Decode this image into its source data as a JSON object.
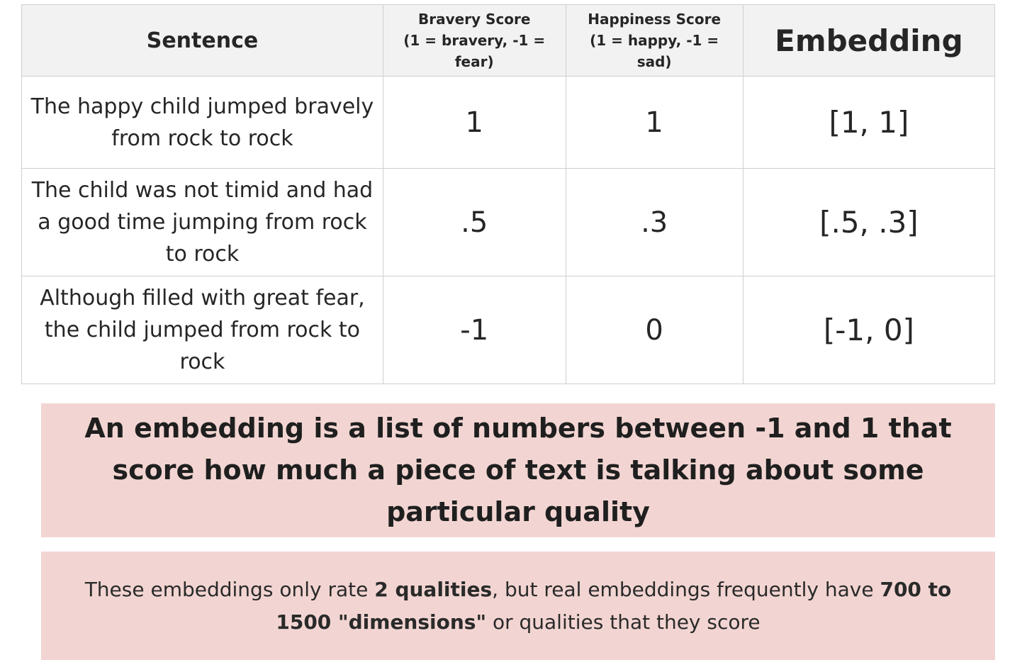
{
  "table": {
    "headers": {
      "sentence": "Sentence",
      "bravery_title": "Bravery Score",
      "bravery_sub": "(1 = bravery, -1 = fear)",
      "happiness_title": "Happiness Score",
      "happiness_sub": "(1 = happy, -1 = sad)",
      "embedding": "Embedding"
    },
    "rows": [
      {
        "sentence": "The happy child jumped bravely from rock to rock",
        "bravery": "1",
        "happiness": "1",
        "embedding": "[1, 1]"
      },
      {
        "sentence": "The child was not timid and had a good time jumping from rock to rock",
        "bravery": ".5",
        "happiness": ".3",
        "embedding": "[.5, .3]"
      },
      {
        "sentence": "Although filled with great fear, the child jumped from rock to rock",
        "bravery": "-1",
        "happiness": "0",
        "embedding": "[-1, 0]"
      }
    ]
  },
  "definition": {
    "text": "An embedding is a list of numbers between -1 and 1 that score how much a piece of text is talking about some particular quality"
  },
  "note": {
    "part1": "These embeddings only rate ",
    "bold1": "2 qualities",
    "part2": ", but real embeddings frequently have ",
    "bold2": "700 to 1500 \"dimensions\"",
    "part3": " or qualities that they score"
  },
  "colors": {
    "header_bg": "#f2f2f2",
    "box_bg": "#f2d5d2",
    "border": "#cfcfcf"
  }
}
